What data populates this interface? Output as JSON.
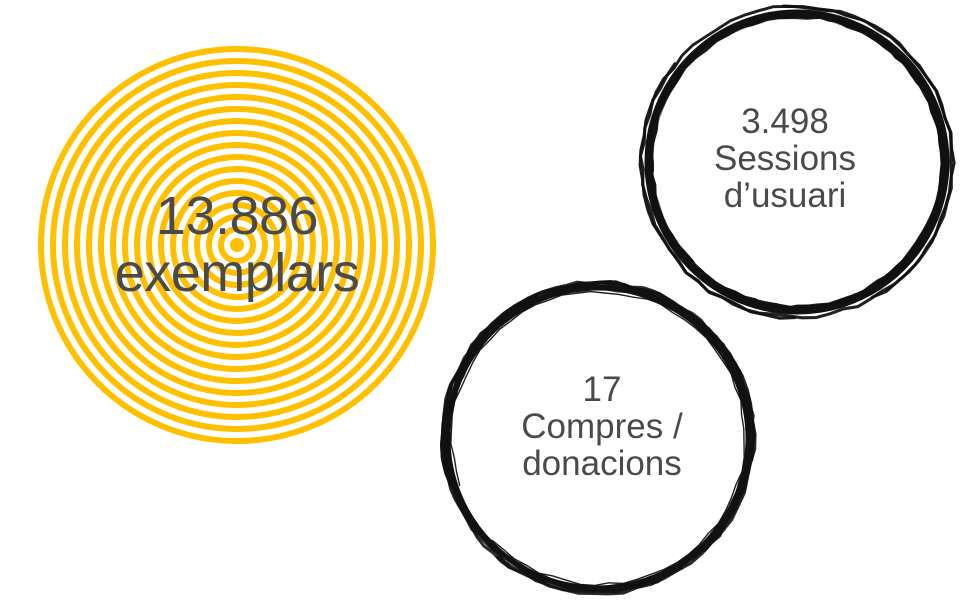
{
  "stats": {
    "exemplars": {
      "value": "13.886",
      "label": "exemplars",
      "color": "#FFC000"
    },
    "sessions": {
      "value": "3.498",
      "label_line1": "Sessions",
      "label_line2": "d’usuari"
    },
    "purchases": {
      "value": "17",
      "label_line1": "Compres /",
      "label_line2": "donacions"
    }
  },
  "colors": {
    "ring_yellow": "#FFC000",
    "brush_black": "#111111",
    "text": "#404040"
  }
}
